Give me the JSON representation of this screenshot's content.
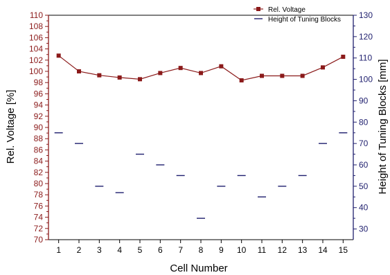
{
  "chart_data": {
    "type": "line",
    "xlabel": "Cell Number",
    "ylabel_left": "Rel. Voltage [%]",
    "ylabel_right": "Height of Tuning Blocks [mm]",
    "x": [
      1,
      2,
      3,
      4,
      5,
      6,
      7,
      8,
      9,
      10,
      11,
      12,
      13,
      14,
      15
    ],
    "x_ticks": [
      "1",
      "2",
      "3",
      "4",
      "5",
      "6",
      "7",
      "8",
      "9",
      "10",
      "11",
      "12",
      "13",
      "14",
      "15"
    ],
    "xlim": [
      0.5,
      15.5
    ],
    "ylim_left": [
      70,
      110
    ],
    "ylim_right": [
      25,
      130
    ],
    "y_ticks_left": [
      "70",
      "72",
      "74",
      "76",
      "78",
      "80",
      "82",
      "84",
      "86",
      "88",
      "90",
      "92",
      "94",
      "96",
      "98",
      "100",
      "102",
      "104",
      "106",
      "108",
      "110"
    ],
    "y_ticks_right": [
      "30",
      "40",
      "50",
      "60",
      "70",
      "80",
      "90",
      "100",
      "110",
      "120",
      "130"
    ],
    "grid": false,
    "legend_position": "top-right",
    "colors": {
      "left_axis": "#8b1a1a",
      "right_axis": "#1f1f6e",
      "series1": "#8b1a1a",
      "series2": "#1f1f6e"
    },
    "series": [
      {
        "name": "Rel. Voltage",
        "axis": "left",
        "marker": "square",
        "style": "line+markers",
        "values": [
          102.8,
          100.0,
          99.3,
          98.9,
          98.6,
          99.7,
          100.6,
          99.7,
          100.9,
          98.4,
          99.2,
          99.2,
          99.2,
          100.7,
          102.6
        ]
      },
      {
        "name": "Height of Tuning Blocks",
        "axis": "right",
        "marker": "dash",
        "style": "markers",
        "values": [
          75,
          70,
          50,
          47,
          65,
          60,
          55,
          35,
          50,
          55,
          45,
          50,
          55,
          70,
          75
        ]
      }
    ]
  }
}
